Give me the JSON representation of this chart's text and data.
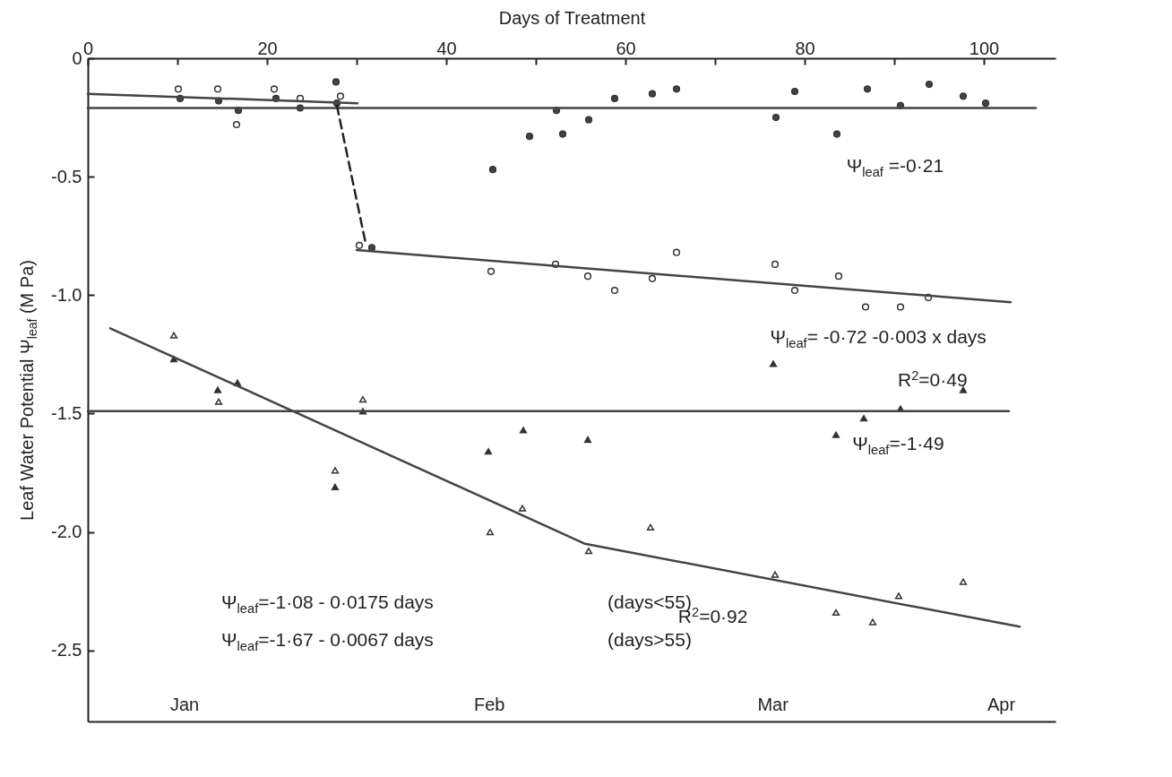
{
  "chart_data": {
    "type": "scatter",
    "xlabel": "Days of Treatment",
    "ylabel": "Leaf Water Potential Ψ$_{leaf}$ (M Pa)",
    "xlim": [
      0,
      108
    ],
    "ylim": [
      -2.8,
      0
    ],
    "xticks": [
      0,
      {
        "value": 10,
        "label": null
      },
      20,
      {
        "value": 30,
        "label": null
      },
      40,
      {
        "value": 50,
        "label": null
      },
      60,
      {
        "value": 70,
        "label": null
      },
      80,
      {
        "value": 90,
        "label": null
      },
      100
    ],
    "yticks": [
      0,
      {
        "value": -0.5,
        "label": "-0.5"
      },
      {
        "value": -1,
        "label": "-1.0"
      },
      {
        "value": -1.5,
        "label": "-1.5"
      },
      {
        "value": -2,
        "label": "-2.0"
      },
      {
        "value": -2.5,
        "label": "-2.5"
      }
    ],
    "series": [
      {
        "marker": "circle",
        "color": "#444444",
        "x": [
          10.3,
          14.6,
          16.8,
          21,
          23.7,
          27.7,
          27.8,
          31.7,
          45.2,
          49.3,
          52.3,
          53,
          55.9,
          58.8,
          63,
          65.7,
          76.8,
          78.9,
          83.6,
          87,
          90.7,
          93.9,
          97.7,
          100.2
        ],
        "values": [
          -0.17,
          -0.18,
          -0.22,
          -0.17,
          -0.21,
          -0.1,
          -0.19,
          -0.8,
          -0.47,
          -0.33,
          -0.22,
          -0.32,
          -0.26,
          -0.17,
          -0.15,
          -0.13,
          -0.25,
          -0.14,
          -0.32,
          -0.13,
          -0.2,
          -0.11,
          -0.16,
          -0.19
        ]
      },
      {
        "marker": "circle",
        "color": "#ffffff",
        "x": [
          10.1,
          14.5,
          16.6,
          20.8,
          23.7,
          28.2,
          30.3,
          45,
          52.2,
          55.8,
          58.8,
          63,
          65.7,
          76.7,
          78.9,
          83.8,
          86.8,
          90.7,
          93.8
        ],
        "values": [
          -0.13,
          -0.13,
          -0.28,
          -0.13,
          -0.17,
          -0.16,
          -0.79,
          -0.9,
          -0.87,
          -0.92,
          -0.98,
          -0.93,
          -0.82,
          -0.87,
          -0.98,
          -0.92,
          -1.05,
          -1.05,
          -1.01
        ]
      },
      {
        "marker": "triangle",
        "color": "#333333",
        "x": [
          9.6,
          14.5,
          16.7,
          27.6,
          30.7,
          44.7,
          48.6,
          55.8,
          76.5,
          83.5,
          86.6,
          90.7,
          97.7
        ],
        "values": [
          -1.27,
          -1.4,
          -1.37,
          -1.81,
          -1.49,
          -1.66,
          -1.57,
          -1.61,
          -1.29,
          -1.59,
          -1.52,
          -1.48,
          -1.4
        ]
      },
      {
        "marker": "triangle",
        "color": "#ffffff",
        "x": [
          9.6,
          14.6,
          27.6,
          30.7,
          44.9,
          48.5,
          55.9,
          62.8,
          76.7,
          83.5,
          87.6,
          90.5,
          97.7
        ],
        "values": [
          -1.17,
          -1.45,
          -1.74,
          -1.44,
          -2.0,
          -1.9,
          -2.08,
          -1.98,
          -2.18,
          -2.34,
          -2.38,
          -2.27,
          -2.21
        ]
      },
      {
        "type": "line",
        "line_style": "solid",
        "color": "#444444",
        "x": [
          0,
          30.1
        ],
        "values": [
          -0.15,
          -0.19
        ]
      },
      {
        "type": "line",
        "line_style": "solid",
        "color": "#444444",
        "x": [
          0,
          105.8
        ],
        "values": [
          -0.21,
          -0.21
        ]
      },
      {
        "type": "line",
        "line_style": "dashed",
        "color": "#222222",
        "x": [
          27.8,
          31
        ],
        "values": [
          -0.2,
          -0.78
        ]
      },
      {
        "type": "line",
        "line_style": "solid",
        "color": "#444444",
        "x": [
          30,
          103
        ],
        "values": [
          -0.81,
          -1.03
        ]
      },
      {
        "type": "line",
        "line_style": "solid",
        "color": "#444444",
        "x": [
          0,
          102.8
        ],
        "values": [
          -1.49,
          -1.49
        ]
      },
      {
        "type": "line",
        "line_style": "solid",
        "color": "#444444",
        "x": [
          2.5,
          55.5,
          104
        ],
        "values": [
          -1.14,
          -2.05,
          -2.4
        ]
      }
    ],
    "annotations": [
      "Ψ$_{leaf}$ =-0·21",
      "Ψ$_{leaf}$= -0·72 -0·003 x days",
      "R$^{2}$=0·49",
      "Ψ$_{leaf}$=-1·49",
      "Ψ$_{leaf}$=-1·08 - 0·0175 days",
      "(days<55)",
      "R$^{2}$=0·92",
      "Ψ$_{leaf}$=-1·67 - 0·0067 days",
      "(days>55)",
      "Jan",
      "Feb",
      "Mar",
      "Apr"
    ]
  }
}
